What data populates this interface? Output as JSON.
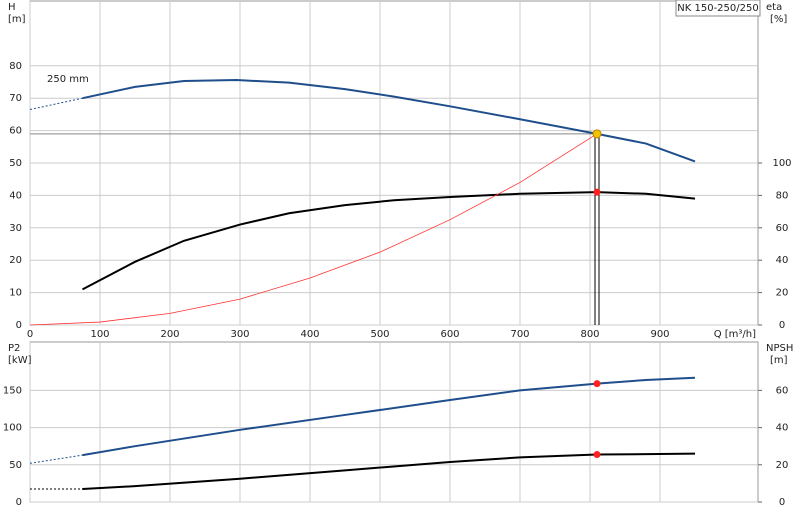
{
  "chart_data": [
    {
      "type": "line",
      "title": "NK 150-250/250",
      "xlabel": "Q [m³/h]",
      "ylabel": "H",
      "yunit": "[m]",
      "y2label": "eta",
      "y2unit": "[%]",
      "annotation": "250 mm",
      "xlim": [
        0,
        1040
      ],
      "xticks": [
        0,
        100,
        200,
        300,
        400,
        500,
        600,
        700,
        800,
        900
      ],
      "xtick_labels": true,
      "ylim": [
        0,
        100
      ],
      "yticks": [
        0,
        10,
        20,
        30,
        40,
        50,
        60,
        70,
        80
      ],
      "y2lim": [
        0,
        200
      ],
      "y2ticks": [
        0,
        20,
        40,
        60,
        80,
        100
      ],
      "grid": true,
      "operating_point": {
        "x": 810,
        "y": 59,
        "color": "#f2c400"
      },
      "series": [
        {
          "color": "#1f4e8c",
          "dashed": true,
          "width": 1,
          "x": [
            0,
            75
          ],
          "values": [
            66.5,
            70
          ]
        },
        {
          "color": "#1f4e8c",
          "width": 2,
          "x": [
            75,
            150,
            220,
            295,
            370,
            450,
            520,
            600,
            700,
            810,
            880,
            950
          ],
          "values": [
            70,
            73.5,
            75.3,
            75.6,
            74.8,
            72.8,
            70.5,
            67.5,
            63.5,
            59,
            56,
            50.5
          ]
        },
        {
          "color": "#000000",
          "width": 2,
          "axis": "y2",
          "x": [
            75,
            150,
            220,
            300,
            370,
            450,
            520,
            600,
            700,
            810,
            880,
            950
          ],
          "values": [
            22,
            39,
            52,
            62,
            69,
            74,
            77,
            79,
            81,
            82,
            81,
            78
          ],
          "marker_x": 810,
          "marker_value": 82
        },
        {
          "color": "#ff3030",
          "width": 0.8,
          "x": [
            0,
            100,
            200,
            300,
            400,
            500,
            600,
            700,
            810
          ],
          "values": [
            0,
            0.9,
            3.6,
            8,
            14.5,
            22.5,
            32.5,
            44,
            59
          ]
        }
      ]
    },
    {
      "type": "line",
      "ylabel": "P2",
      "yunit": "[kW]",
      "y2label": "NPSH",
      "y2unit": "[m]",
      "xlim": [
        0,
        1040
      ],
      "xticks": [
        0,
        100,
        200,
        300,
        400,
        500,
        600,
        700,
        800,
        900
      ],
      "xtick_labels": false,
      "ylim": [
        0,
        215
      ],
      "yticks": [
        0,
        50,
        100,
        150
      ],
      "y2lim": [
        0,
        86
      ],
      "y2ticks": [
        0,
        20,
        40,
        60
      ],
      "grid": true,
      "series": [
        {
          "color": "#1f4e8c",
          "dashed": true,
          "width": 1,
          "x": [
            0,
            75
          ],
          "values": [
            52,
            63
          ]
        },
        {
          "color": "#1f4e8c",
          "width": 2,
          "x": [
            75,
            150,
            300,
            450,
            600,
            700,
            810,
            880,
            950
          ],
          "values": [
            63,
            75,
            97,
            117,
            137,
            150,
            159,
            164,
            167
          ],
          "marker_x": 810,
          "marker_value": 159
        },
        {
          "color": "#000000",
          "dashed": true,
          "width": 1,
          "axis": "y2",
          "x": [
            0,
            75
          ],
          "values": [
            7,
            7
          ]
        },
        {
          "color": "#000000",
          "width": 2,
          "axis": "y2",
          "x": [
            75,
            150,
            300,
            450,
            600,
            700,
            810,
            950
          ],
          "values": [
            7,
            8.5,
            12.5,
            17,
            21.5,
            24,
            25.5,
            26
          ],
          "marker_x": 810,
          "marker_value": 25.5
        }
      ]
    }
  ]
}
